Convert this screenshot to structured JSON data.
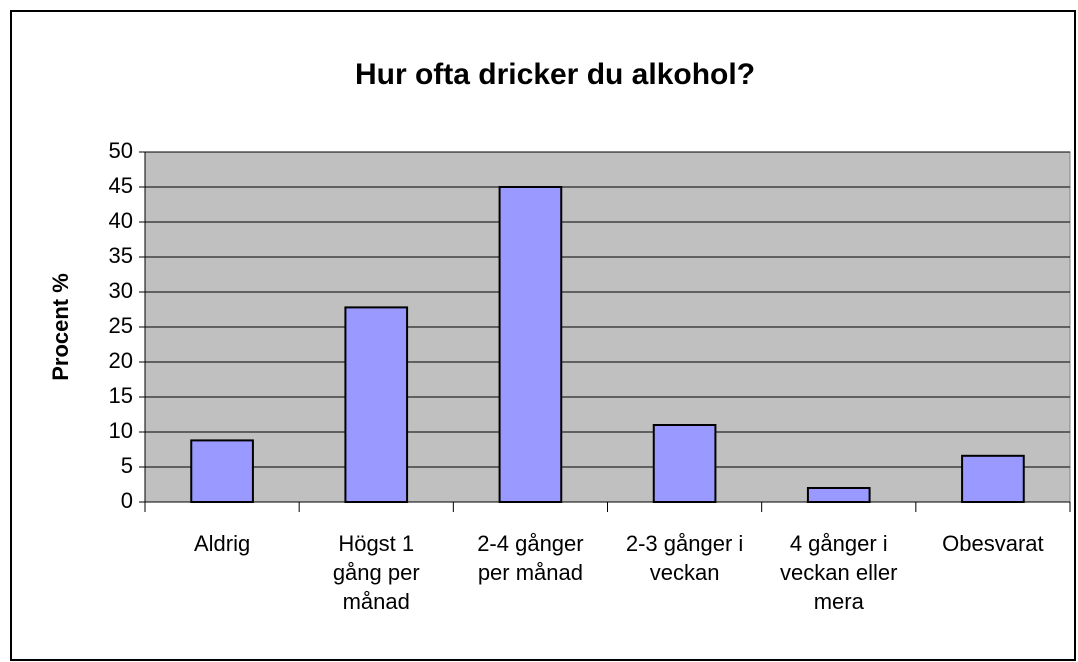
{
  "chart_data": {
    "type": "bar",
    "title": "Hur ofta dricker du alkohol?",
    "y_label": "Procent %",
    "categories": [
      "Aldrig",
      "Högst 1 gång per månad",
      "2-4 gånger per månad",
      "2-3 gånger i veckan",
      "4 gånger i veckan eller mera",
      "Obesvarat"
    ],
    "values": [
      8.8,
      27.8,
      45,
      11,
      2,
      6.6
    ],
    "color": "#9999ff",
    "ylim": [
      0,
      50
    ],
    "yticks": [
      0,
      5,
      10,
      15,
      20,
      25,
      30,
      35,
      40,
      45,
      50
    ],
    "grid": true
  }
}
